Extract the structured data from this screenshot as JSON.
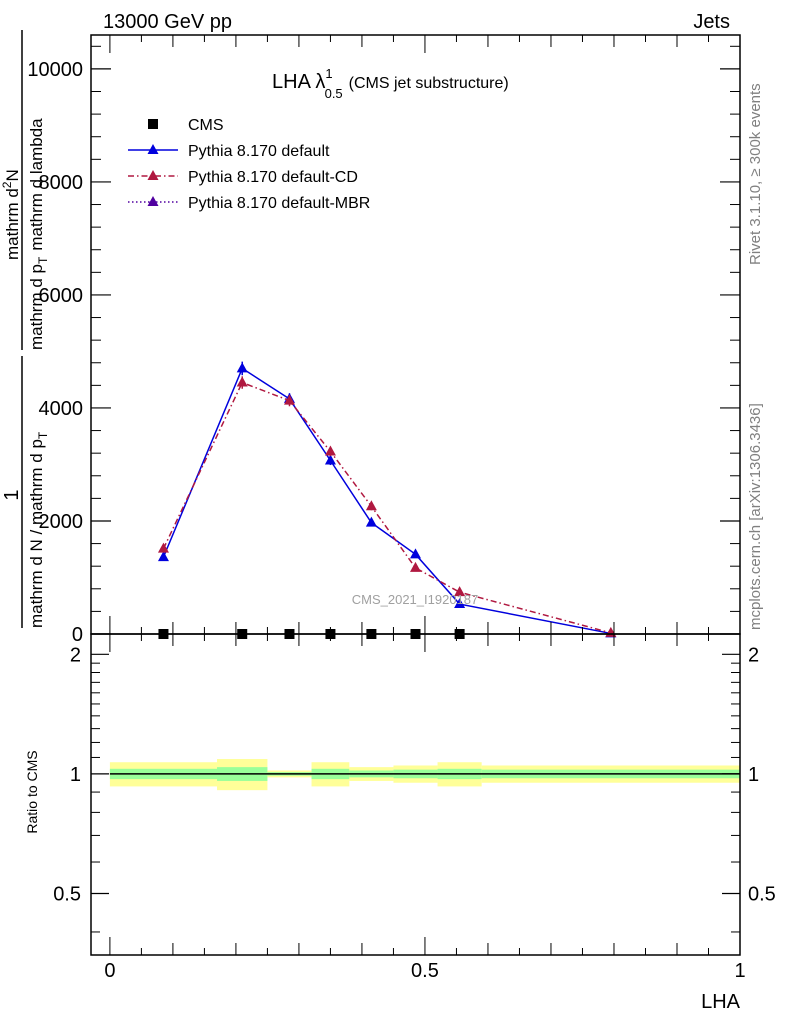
{
  "header": {
    "left": "13000 GeV pp",
    "right": "Jets"
  },
  "side_labels": {
    "rivet": "Rivet 3.1.10, ≥ 300k events",
    "mcplots": "mcplots.cern.ch [arXiv:1306.3436]"
  },
  "chart_data": [
    {
      "type": "line",
      "title": {
        "main": "LHA λ",
        "superscript": "1",
        "subscript": "0.5",
        "suffix": "(CMS jet substructure)"
      },
      "ylabel": {
        "numerator": "1",
        "denominator": "mathrm d N / mathrm d p",
        "denominator_sub": "T",
        "ratio_numerator": "mathrm d",
        "ratio_numerator_sup": "2",
        "ratio_numerator_tail": "N",
        "ratio_denominator": "mathrm d p",
        "ratio_denominator_sub": "T",
        "ratio_denominator_tail": "mathrm d lambda"
      },
      "watermark": "CMS_2021_I1920187",
      "ylim": [
        0,
        10600
      ],
      "xlim": [
        -0.03,
        1.0
      ],
      "yticks": [
        0,
        2000,
        4000,
        6000,
        8000,
        10000
      ],
      "ytick_labels": [
        "0",
        "2000",
        "4000",
        "6000",
        "8000",
        "10000"
      ],
      "legend_position": "top-left",
      "series": [
        {
          "name": "CMS",
          "style": "markers",
          "color": "#000000",
          "x": [
            0.085,
            0.21,
            0.285,
            0.35,
            0.415,
            0.485,
            0.555
          ],
          "y": [
            0,
            0,
            0,
            0,
            0,
            0,
            0
          ]
        },
        {
          "name": "Pythia 8.170 default",
          "style": "solid",
          "color": "#0000dd",
          "x": [
            0.085,
            0.21,
            0.285,
            0.35,
            0.415,
            0.485,
            0.555,
            0.795
          ],
          "y": [
            1360,
            4700,
            4160,
            3070,
            1970,
            1410,
            530,
            10
          ],
          "err": [
            60,
            120,
            100,
            80,
            60,
            60,
            40,
            5
          ]
        },
        {
          "name": "Pythia 8.170 default-CD",
          "style": "dashdot",
          "color": "#b01840",
          "x": [
            0.085,
            0.21,
            0.285,
            0.35,
            0.415,
            0.485,
            0.555,
            0.795
          ],
          "y": [
            1510,
            4450,
            4130,
            3230,
            2260,
            1170,
            740,
            20
          ],
          "err": [
            60,
            110,
            100,
            80,
            70,
            50,
            40,
            5
          ]
        },
        {
          "name": "Pythia 8.170 default-MBR",
          "style": "dotted",
          "color": "#5000a0",
          "x": [],
          "y": []
        }
      ]
    },
    {
      "type": "area",
      "ylabel": "Ratio to CMS",
      "xlabel": "LHA",
      "ylim": [
        0.35,
        2.25
      ],
      "xlim": [
        -0.03,
        1.0
      ],
      "yticks": [
        0.5,
        1,
        2
      ],
      "ytick_labels": [
        "0.5",
        "1",
        "2"
      ],
      "xticks": [
        0,
        0.5,
        1
      ],
      "xtick_labels": [
        "0",
        "0.5",
        "1"
      ],
      "reference_line": 1,
      "bands": {
        "bin_edges": [
          0,
          0.17,
          0.25,
          0.32,
          0.38,
          0.45,
          0.52,
          0.59,
          1.0
        ],
        "yellow": [
          [
            0.93,
            1.07
          ],
          [
            0.91,
            1.09
          ],
          [
            0.98,
            1.02
          ],
          [
            0.93,
            1.07
          ],
          [
            0.96,
            1.04
          ],
          [
            0.95,
            1.05
          ],
          [
            0.93,
            1.07
          ],
          [
            0.95,
            1.05
          ]
        ],
        "green": [
          [
            0.97,
            1.03
          ],
          [
            0.96,
            1.04
          ],
          [
            0.99,
            1.01
          ],
          [
            0.97,
            1.03
          ],
          [
            0.98,
            1.02
          ],
          [
            0.975,
            1.025
          ],
          [
            0.97,
            1.03
          ],
          [
            0.975,
            1.025
          ]
        ],
        "yellow_color": "#ffff99",
        "green_color": "#99ff99"
      }
    }
  ]
}
